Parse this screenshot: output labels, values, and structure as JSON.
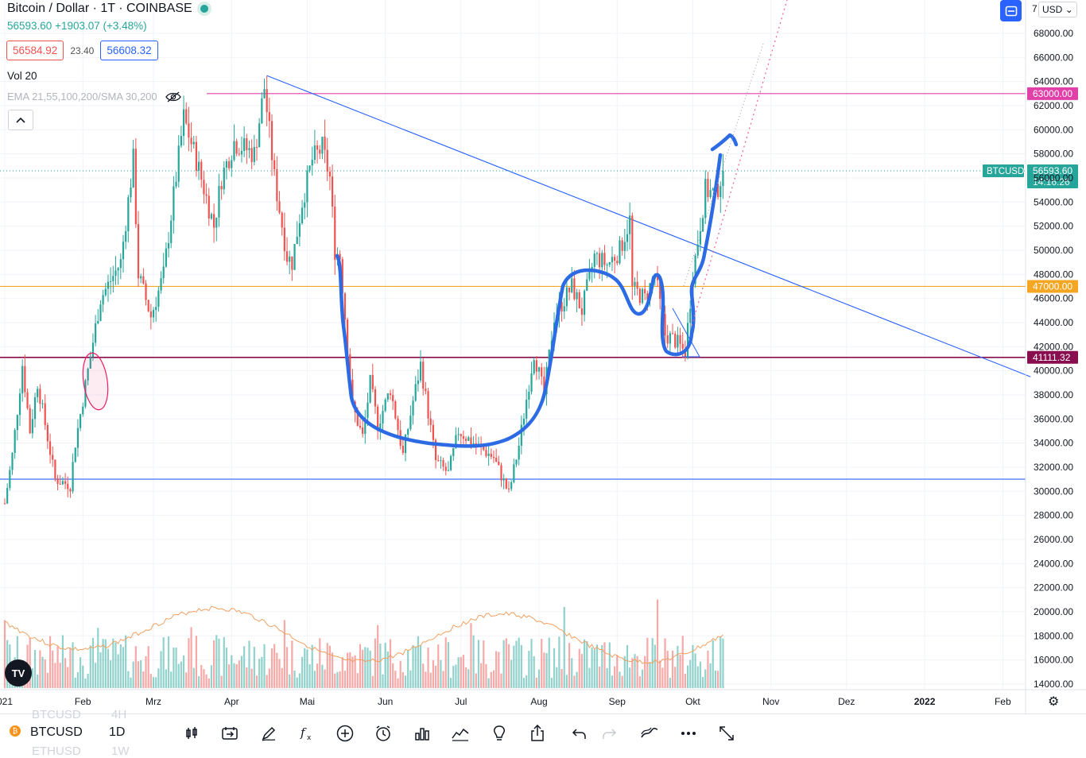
{
  "header": {
    "title": "Bitcoin / Dollar · 1T · COINBASE",
    "last_price": "56593.60",
    "change": "+1903.07 (+3.48%)",
    "bid": "56584.92",
    "spread": "23.40",
    "ask": "56608.32",
    "vol_label": "Vol 20",
    "ema_label": "EMA 21,55,100,200/SMA 30,200",
    "currency": "USD",
    "partial_label": "7"
  },
  "toolbar": {
    "symbol": "BTCUSD",
    "interval": "1D",
    "ghost_above": [
      "BTCUSD",
      "4H"
    ],
    "ghost_below": [
      "ETHUSD",
      "1W"
    ],
    "icons": [
      "candles-icon",
      "compare-icon",
      "draw-icon",
      "indicators-icon",
      "add-icon",
      "alert-icon",
      "bars-icon",
      "replay-icon",
      "idea-icon",
      "share-icon",
      "undo-icon",
      "redo-icon",
      "ribbon-icon",
      "more-icon",
      "fullscreen-icon"
    ]
  },
  "colors": {
    "up": "#26a69a",
    "down": "#ef5350",
    "trendline": "#2962ff",
    "drawing": "#2d6be4",
    "level_63000": "#e040a8",
    "level_47000": "#f5a623",
    "level_41111": "#880e4f",
    "vol_ma": "#f0a060"
  },
  "chart_data": {
    "type": "candlestick",
    "symbol": "BTCUSD",
    "timeframe": "1D",
    "x_ticks": [
      "2021",
      "Feb",
      "Mrz",
      "Apr",
      "Mai",
      "Jun",
      "Jul",
      "Aug",
      "Sep",
      "Okt",
      "Nov",
      "Dez",
      "2022",
      "Feb"
    ],
    "x_tick_labels_shown": [
      "021",
      "Feb",
      "Mrz",
      "Apr",
      "Mai",
      "Jun",
      "Jul",
      "Aug",
      "Sep",
      "Okt",
      "Nov",
      "Dez",
      "2022",
      "Feb"
    ],
    "y_ticks": [
      68000,
      66000,
      64000,
      62000,
      60000,
      58000,
      56000,
      54000,
      52000,
      50000,
      48000,
      46000,
      44000,
      42000,
      40000,
      38000,
      36000,
      34000,
      32000,
      30000,
      28000,
      26000,
      24000,
      22000,
      20000,
      18000,
      16000,
      14000
    ],
    "y_tick_labels": [
      "68000.00",
      "66000.00",
      "64000.00",
      "62000.00",
      "60000.00",
      "58000.00",
      "56000.00",
      "54000.00",
      "52000.00",
      "50000.00",
      "48000.00",
      "46000.00",
      "44000.00",
      "42000.00",
      "40000.00",
      "38000.00",
      "36000.00",
      "34000.00",
      "32000.00",
      "30000.00",
      "28000.00",
      "26000.00",
      "24000.00",
      "22000.00",
      "20000.00",
      "18000.00",
      "16000.00",
      "14000.00"
    ],
    "ylim": [
      13000,
      70000
    ],
    "price_path": [
      [
        "2021-01-01",
        29000
      ],
      [
        "2021-01-04",
        33000
      ],
      [
        "2021-01-08",
        40500
      ],
      [
        "2021-01-11",
        35000
      ],
      [
        "2021-01-14",
        39000
      ],
      [
        "2021-01-21",
        31000
      ],
      [
        "2021-01-27",
        30500
      ],
      [
        "2021-01-29",
        34000
      ],
      [
        "2021-02-08",
        46000
      ],
      [
        "2021-02-12",
        47500
      ],
      [
        "2021-02-16",
        49000
      ],
      [
        "2021-02-21",
        57500
      ],
      [
        "2021-02-23",
        48000
      ],
      [
        "2021-02-28",
        44500
      ],
      [
        "2021-03-05",
        48000
      ],
      [
        "2021-03-13",
        61000
      ],
      [
        "2021-03-18",
        57500
      ],
      [
        "2021-03-25",
        52000
      ],
      [
        "2021-03-28",
        56000
      ],
      [
        "2021-04-02",
        59000
      ],
      [
        "2021-04-10",
        58000
      ],
      [
        "2021-04-14",
        63500
      ],
      [
        "2021-04-18",
        56000
      ],
      [
        "2021-04-23",
        49500
      ],
      [
        "2021-04-25",
        49000
      ],
      [
        "2021-04-29",
        54000
      ],
      [
        "2021-05-03",
        57500
      ],
      [
        "2021-05-07",
        58500
      ],
      [
        "2021-05-10",
        56000
      ],
      [
        "2021-05-12",
        50000
      ],
      [
        "2021-05-14",
        49500
      ],
      [
        "2021-05-19",
        37000
      ],
      [
        "2021-05-23",
        34500
      ],
      [
        "2021-05-26",
        39000
      ],
      [
        "2021-05-29",
        35500
      ],
      [
        "2021-06-03",
        38500
      ],
      [
        "2021-06-08",
        33000
      ],
      [
        "2021-06-12",
        37500
      ],
      [
        "2021-06-15",
        40500
      ],
      [
        "2021-06-21",
        32500
      ],
      [
        "2021-06-26",
        31500
      ],
      [
        "2021-06-30",
        35000
      ],
      [
        "2021-07-06",
        34000
      ],
      [
        "2021-07-14",
        32800
      ],
      [
        "2021-07-20",
        29800
      ],
      [
        "2021-07-24",
        33800
      ],
      [
        "2021-07-30",
        41500
      ],
      [
        "2021-08-03",
        38000
      ],
      [
        "2021-08-07",
        44500
      ],
      [
        "2021-08-14",
        47000
      ],
      [
        "2021-08-18",
        45000
      ],
      [
        "2021-08-23",
        49500
      ],
      [
        "2021-08-28",
        48800
      ],
      [
        "2021-09-02",
        50000
      ],
      [
        "2021-09-06",
        52500
      ],
      [
        "2021-09-07",
        46800
      ],
      [
        "2021-09-12",
        46000
      ],
      [
        "2021-09-16",
        48000
      ],
      [
        "2021-09-20",
        43000
      ],
      [
        "2021-09-24",
        42500
      ],
      [
        "2021-09-28",
        41500
      ],
      [
        "2021-10-01",
        48000
      ],
      [
        "2021-10-06",
        55000
      ],
      [
        "2021-10-10",
        54600
      ],
      [
        "2021-10-13",
        56593.6
      ]
    ],
    "last_price": 56593.6,
    "last_price_label": "BTCUSD",
    "countdown": "14:16:26",
    "horizontal_levels": [
      {
        "price": 63000,
        "label": "63000.00"
      },
      {
        "price": 47000,
        "label": "47000.00"
      },
      {
        "price": 41111.32,
        "label": "41111.32"
      },
      {
        "price": 31000,
        "label": ""
      }
    ],
    "trendline": {
      "from": [
        "2021-04-14",
        64500
      ],
      "to": [
        "2022-02-01",
        39500
      ]
    },
    "volume_ma_period": 20,
    "grid": true,
    "annotations": [
      "hand-drawn cup-and-handle curve",
      "ellipse at Feb breakout",
      "dotted projection lines"
    ]
  }
}
